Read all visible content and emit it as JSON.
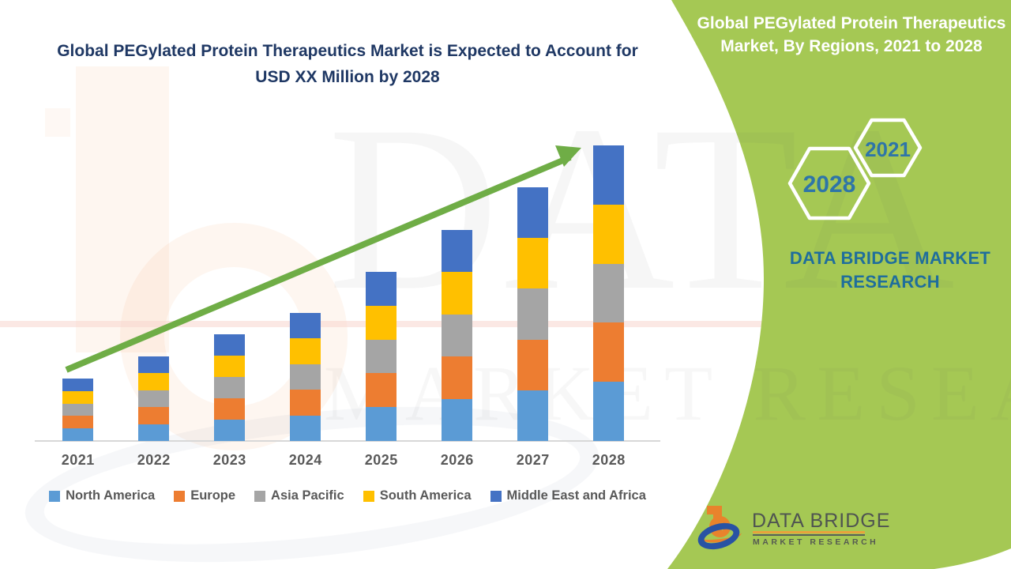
{
  "left_title": {
    "line1": "Global PEGylated Protein Therapeutics Market is Expected to Account for",
    "line2": "USD XX Million by 2028",
    "color": "#1F3864"
  },
  "right_panel": {
    "background_color": "#A5C854",
    "title_line1": "Global PEGylated Protein Therapeutics",
    "title_line2": "Market, By Regions, 2021 to 2028",
    "hexagons": [
      {
        "label": "2028"
      },
      {
        "label": "2021"
      }
    ],
    "hexagon_text_color": "#2E75A8",
    "brand_text": "DATA BRIDGE MARKET RESEARCH",
    "brand_text_color": "#1F6E9C"
  },
  "watermark": {
    "line1": "DATA BRIDGE",
    "line2": "MARKET RESEARCH"
  },
  "logo": {
    "name": "DATA BRIDGE",
    "subtext": "MARKET RESEARCH"
  },
  "chart_data": {
    "type": "bar",
    "stacked": true,
    "title": "Global PEGylated Protein Therapeutics Market is Expected to Account for USD XX Million by 2028",
    "xlabel": "",
    "ylabel": "",
    "value_note": "Actual USD values are hidden as 'XX' in the source; series values are relative units estimated from bar heights (1 unit = 1 px)",
    "categories": [
      "2021",
      "2022",
      "2023",
      "2024",
      "2025",
      "2026",
      "2027",
      "2028"
    ],
    "totals": [
      79,
      107,
      135,
      162,
      214,
      267,
      321,
      374
    ],
    "series": [
      {
        "name": "North America",
        "color": "#5B9BD5",
        "values": [
          15.8,
          21.4,
          27,
          32.4,
          42.8,
          53.4,
          64.2,
          74.8
        ]
      },
      {
        "name": "Europe",
        "color": "#ED7D31",
        "values": [
          15.8,
          21.4,
          27,
          32.4,
          42.8,
          53.4,
          64.2,
          74.8
        ]
      },
      {
        "name": "Asia Pacific",
        "color": "#A5A5A5",
        "values": [
          15.8,
          21.4,
          27,
          32.4,
          42.8,
          53.4,
          64.2,
          74.8
        ]
      },
      {
        "name": "South America",
        "color": "#FFC000",
        "values": [
          15.8,
          21.4,
          27,
          32.4,
          42.8,
          53.4,
          64.2,
          74.8
        ]
      },
      {
        "name": "Middle East and Africa",
        "color": "#4472C4",
        "values": [
          15.8,
          21.4,
          27,
          32.4,
          42.8,
          53.4,
          64.2,
          74.8
        ]
      }
    ],
    "legend_position": "bottom",
    "grid": false,
    "axis_color": "#D8D8D8",
    "label_color": "#595959",
    "trend_arrow": true,
    "trend_arrow_color": "#6FAD46"
  }
}
